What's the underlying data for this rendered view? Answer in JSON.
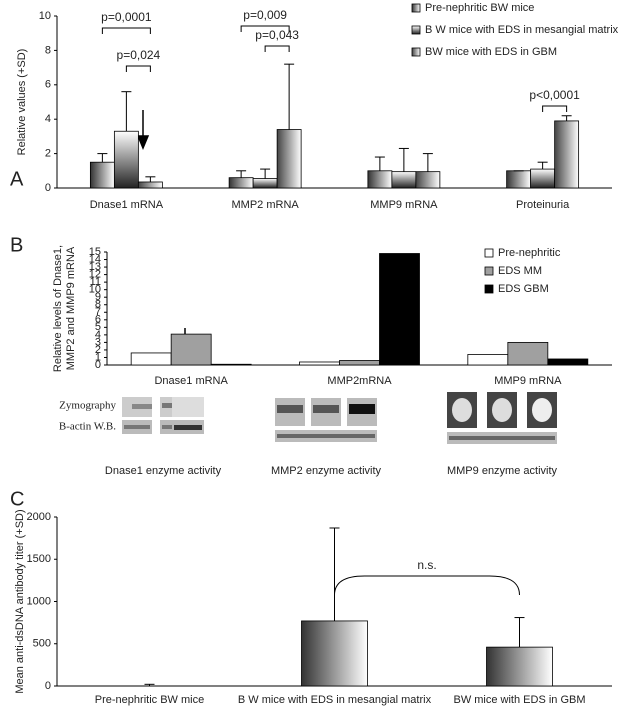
{
  "chart_data": [
    {
      "type": "bar",
      "panel": "A",
      "ylabel": [
        "Relative values (+SD)"
      ],
      "fill_style": "gradient",
      "categories": [
        "Dnase1 mRNA",
        "MMP2 mRNA",
        "MMP9 mRNA",
        "Proteinuria"
      ],
      "series": [
        {
          "name": "Pre-nephritic BW mice",
          "color": "#333333",
          "values": [
            1.5,
            0.6,
            1.0,
            1.0
          ],
          "errors": [
            0.5,
            0.4,
            0.8,
            0
          ]
        },
        {
          "name": "B W mice with EDS in mesangial matrix",
          "color": "#222222",
          "values": [
            3.3,
            0.55,
            0.95,
            1.1
          ],
          "errors": [
            2.3,
            0.55,
            1.35,
            0.4
          ]
        },
        {
          "name": "BW mice with EDS in GBM",
          "color": "#444444",
          "values": [
            0.35,
            3.4,
            0.95,
            3.9
          ],
          "errors": [
            0.3,
            3.8,
            1.05,
            0.3
          ]
        }
      ],
      "ylim": [
        0,
        10
      ],
      "yticks": [
        0,
        2,
        4,
        6,
        8,
        10
      ],
      "grid": false,
      "legend": "top-right",
      "annotations": [
        "p=0,0001",
        "p=0,024",
        "p=0,009",
        "p=0,043",
        "p<0,0001"
      ]
    },
    {
      "type": "bar",
      "panel": "B",
      "ylabel": [
        "Relative levels of Dnase1,",
        "MMP2 and MMP9 mRNA"
      ],
      "fill_style": "solid",
      "categories": [
        "Dnase1 mRNA",
        "MMP2mRNA",
        "MMP9 mRNA"
      ],
      "series": [
        {
          "name": "Pre-nephritic",
          "color": "#ffffff",
          "values": [
            1.6,
            0.4,
            1.4
          ]
        },
        {
          "name": "EDS MM",
          "color": "#a0a0a0",
          "values": [
            4.1,
            0.6,
            3.0
          ]
        },
        {
          "name": "EDS GBM",
          "color": "#000000",
          "values": [
            0.1,
            14.8,
            0.8
          ]
        }
      ],
      "ylim": [
        0,
        15
      ],
      "yticks": [
        0,
        1,
        2,
        3,
        4,
        5,
        6,
        7,
        8,
        9,
        10,
        11,
        12,
        13,
        14,
        15
      ],
      "grid": false,
      "legend": "top-right",
      "zymography": {
        "row_labels": [
          "Zymography",
          "B-actin W.B."
        ],
        "captions": [
          "Dnase1 enzyme activity",
          "MMP2 enzyme activity",
          "MMP9  enzyme activity"
        ]
      }
    },
    {
      "type": "bar",
      "panel": "C",
      "ylabel": [
        "Mean anti-dsDNA antibody  titer (+SD)"
      ],
      "fill_style": "gradient",
      "categories": [
        "Pre-nephritic BW mice",
        "B W mice with EDS in mesangial matrix",
        "BW mice with EDS in GBM"
      ],
      "series": [
        {
          "color": "#333333",
          "values": [
            0,
            770,
            460
          ],
          "errors": [
            20,
            1100,
            350
          ]
        }
      ],
      "ylim": [
        0,
        2000
      ],
      "yticks": [
        0,
        500,
        1000,
        1500,
        2000
      ],
      "grid": false,
      "annotations": [
        "n.s."
      ]
    }
  ]
}
